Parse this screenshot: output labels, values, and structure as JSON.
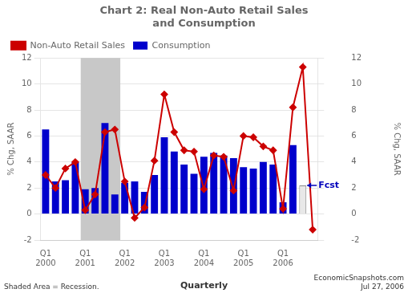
{
  "chart_data": {
    "type": "bar",
    "title": "Chart 2: Real Non-Auto Retail Sales\nand Consumption",
    "categories": [
      "Q1\n2000",
      null,
      null,
      null,
      "Q1\n2001",
      null,
      null,
      null,
      "Q1\n2002",
      null,
      null,
      null,
      "Q1\n2003",
      null,
      null,
      null,
      "Q1\n2004",
      null,
      null,
      null,
      "Q1\n2005",
      null,
      null,
      null,
      "Q1\n2006",
      null,
      null,
      null
    ],
    "series": [
      {
        "name": "Consumption",
        "type": "bar",
        "color": "#0000CC",
        "colors": [
          "#0000CC",
          "#0000CC",
          "#0000CC",
          "#0000CC",
          "#0000CC",
          "#0000CC",
          "#0000CC",
          "#0000CC",
          "#0000CC",
          "#0000CC",
          "#0000CC",
          "#0000CC",
          "#0000CC",
          "#0000CC",
          "#0000CC",
          "#0000CC",
          "#0000CC",
          "#0000CC",
          "#0000CC",
          "#0000CC",
          "#0000CC",
          "#0000CC",
          "#0000CC",
          "#0000CC",
          "#0000CC",
          "#0000CC",
          "#E8E8E8",
          "#0000CC"
        ],
        "values": [
          6.5,
          2.5,
          2.6,
          4.0,
          1.9,
          2.0,
          7.0,
          1.5,
          2.4,
          2.5,
          1.7,
          3.0,
          5.9,
          4.8,
          3.8,
          3.1,
          4.4,
          4.7,
          4.5,
          4.3,
          3.6,
          3.5,
          4.0,
          3.8,
          0.9,
          5.3,
          2.2,
          null
        ]
      },
      {
        "name": "Non-Auto Retail Sales",
        "type": "line",
        "color": "#CC0000",
        "marker": "diamond",
        "values": [
          3.0,
          2.0,
          3.5,
          4.0,
          0.3,
          1.5,
          6.3,
          6.5,
          2.5,
          -0.3,
          0.5,
          4.1,
          9.2,
          6.3,
          4.9,
          4.8,
          1.9,
          4.5,
          4.4,
          1.8,
          6.0,
          5.9,
          5.2,
          4.9,
          0.4,
          8.2,
          11.3,
          -1.2
        ]
      }
    ],
    "ylabel": "% Chg, SAAR",
    "y2label": "% Chg, SAAR",
    "ylim": [
      -2,
      12
    ],
    "yticks": [
      -2,
      0,
      2,
      4,
      6,
      8,
      10,
      12
    ],
    "y2lim": [
      -2,
      12
    ],
    "y2ticks": [
      -2,
      0,
      2,
      4,
      6,
      8,
      10,
      12
    ],
    "grid": true,
    "legend": "upper left",
    "shaded_region": {
      "start": 3.55,
      "end": 7.55,
      "color": "#C8C8C8"
    },
    "annotations": [
      {
        "text": "Fcst",
        "x": 26,
        "y": 2.2,
        "color": "#0000BB"
      }
    ],
    "footnote_left": "Shaded Area = Recession.",
    "footnote_center": "Quarterly",
    "footnote_right": "EconomicSnapshots.com\nJul 27, 2006"
  }
}
